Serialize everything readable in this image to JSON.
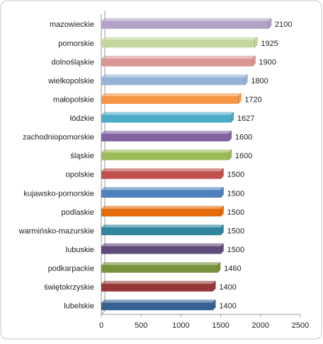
{
  "chart_data": {
    "type": "bar",
    "orientation": "horizontal",
    "categories": [
      "mazowieckie",
      "pomorskie",
      "dolnośląskie",
      "wielkopolskie",
      "małopolskie",
      "łódzkie",
      "zachodniopomorskie",
      "śląskie",
      "opolskie",
      "kujawsko-pomorskie",
      "podlaskie",
      "warmińsko-mazurskie",
      "lubuskie",
      "podkarpackie",
      "świętokrzyskie",
      "lubelskie"
    ],
    "values": [
      2100,
      1925,
      1900,
      1800,
      1720,
      1627,
      1600,
      1600,
      1500,
      1500,
      1500,
      1500,
      1500,
      1460,
      1400,
      1400
    ],
    "colors": [
      "#b3a2c7",
      "#c3d69b",
      "#d99694",
      "#95b3d7",
      "#f79646",
      "#4bacc6",
      "#8064a2",
      "#9bbb59",
      "#c0504d",
      "#4f81bd",
      "#e46c0a",
      "#31859c",
      "#604a7b",
      "#77933c",
      "#953735",
      "#376092"
    ],
    "xlim": [
      0,
      2500
    ],
    "xticks": [
      0,
      500,
      1000,
      1500,
      2000,
      2500
    ],
    "grid": false
  }
}
